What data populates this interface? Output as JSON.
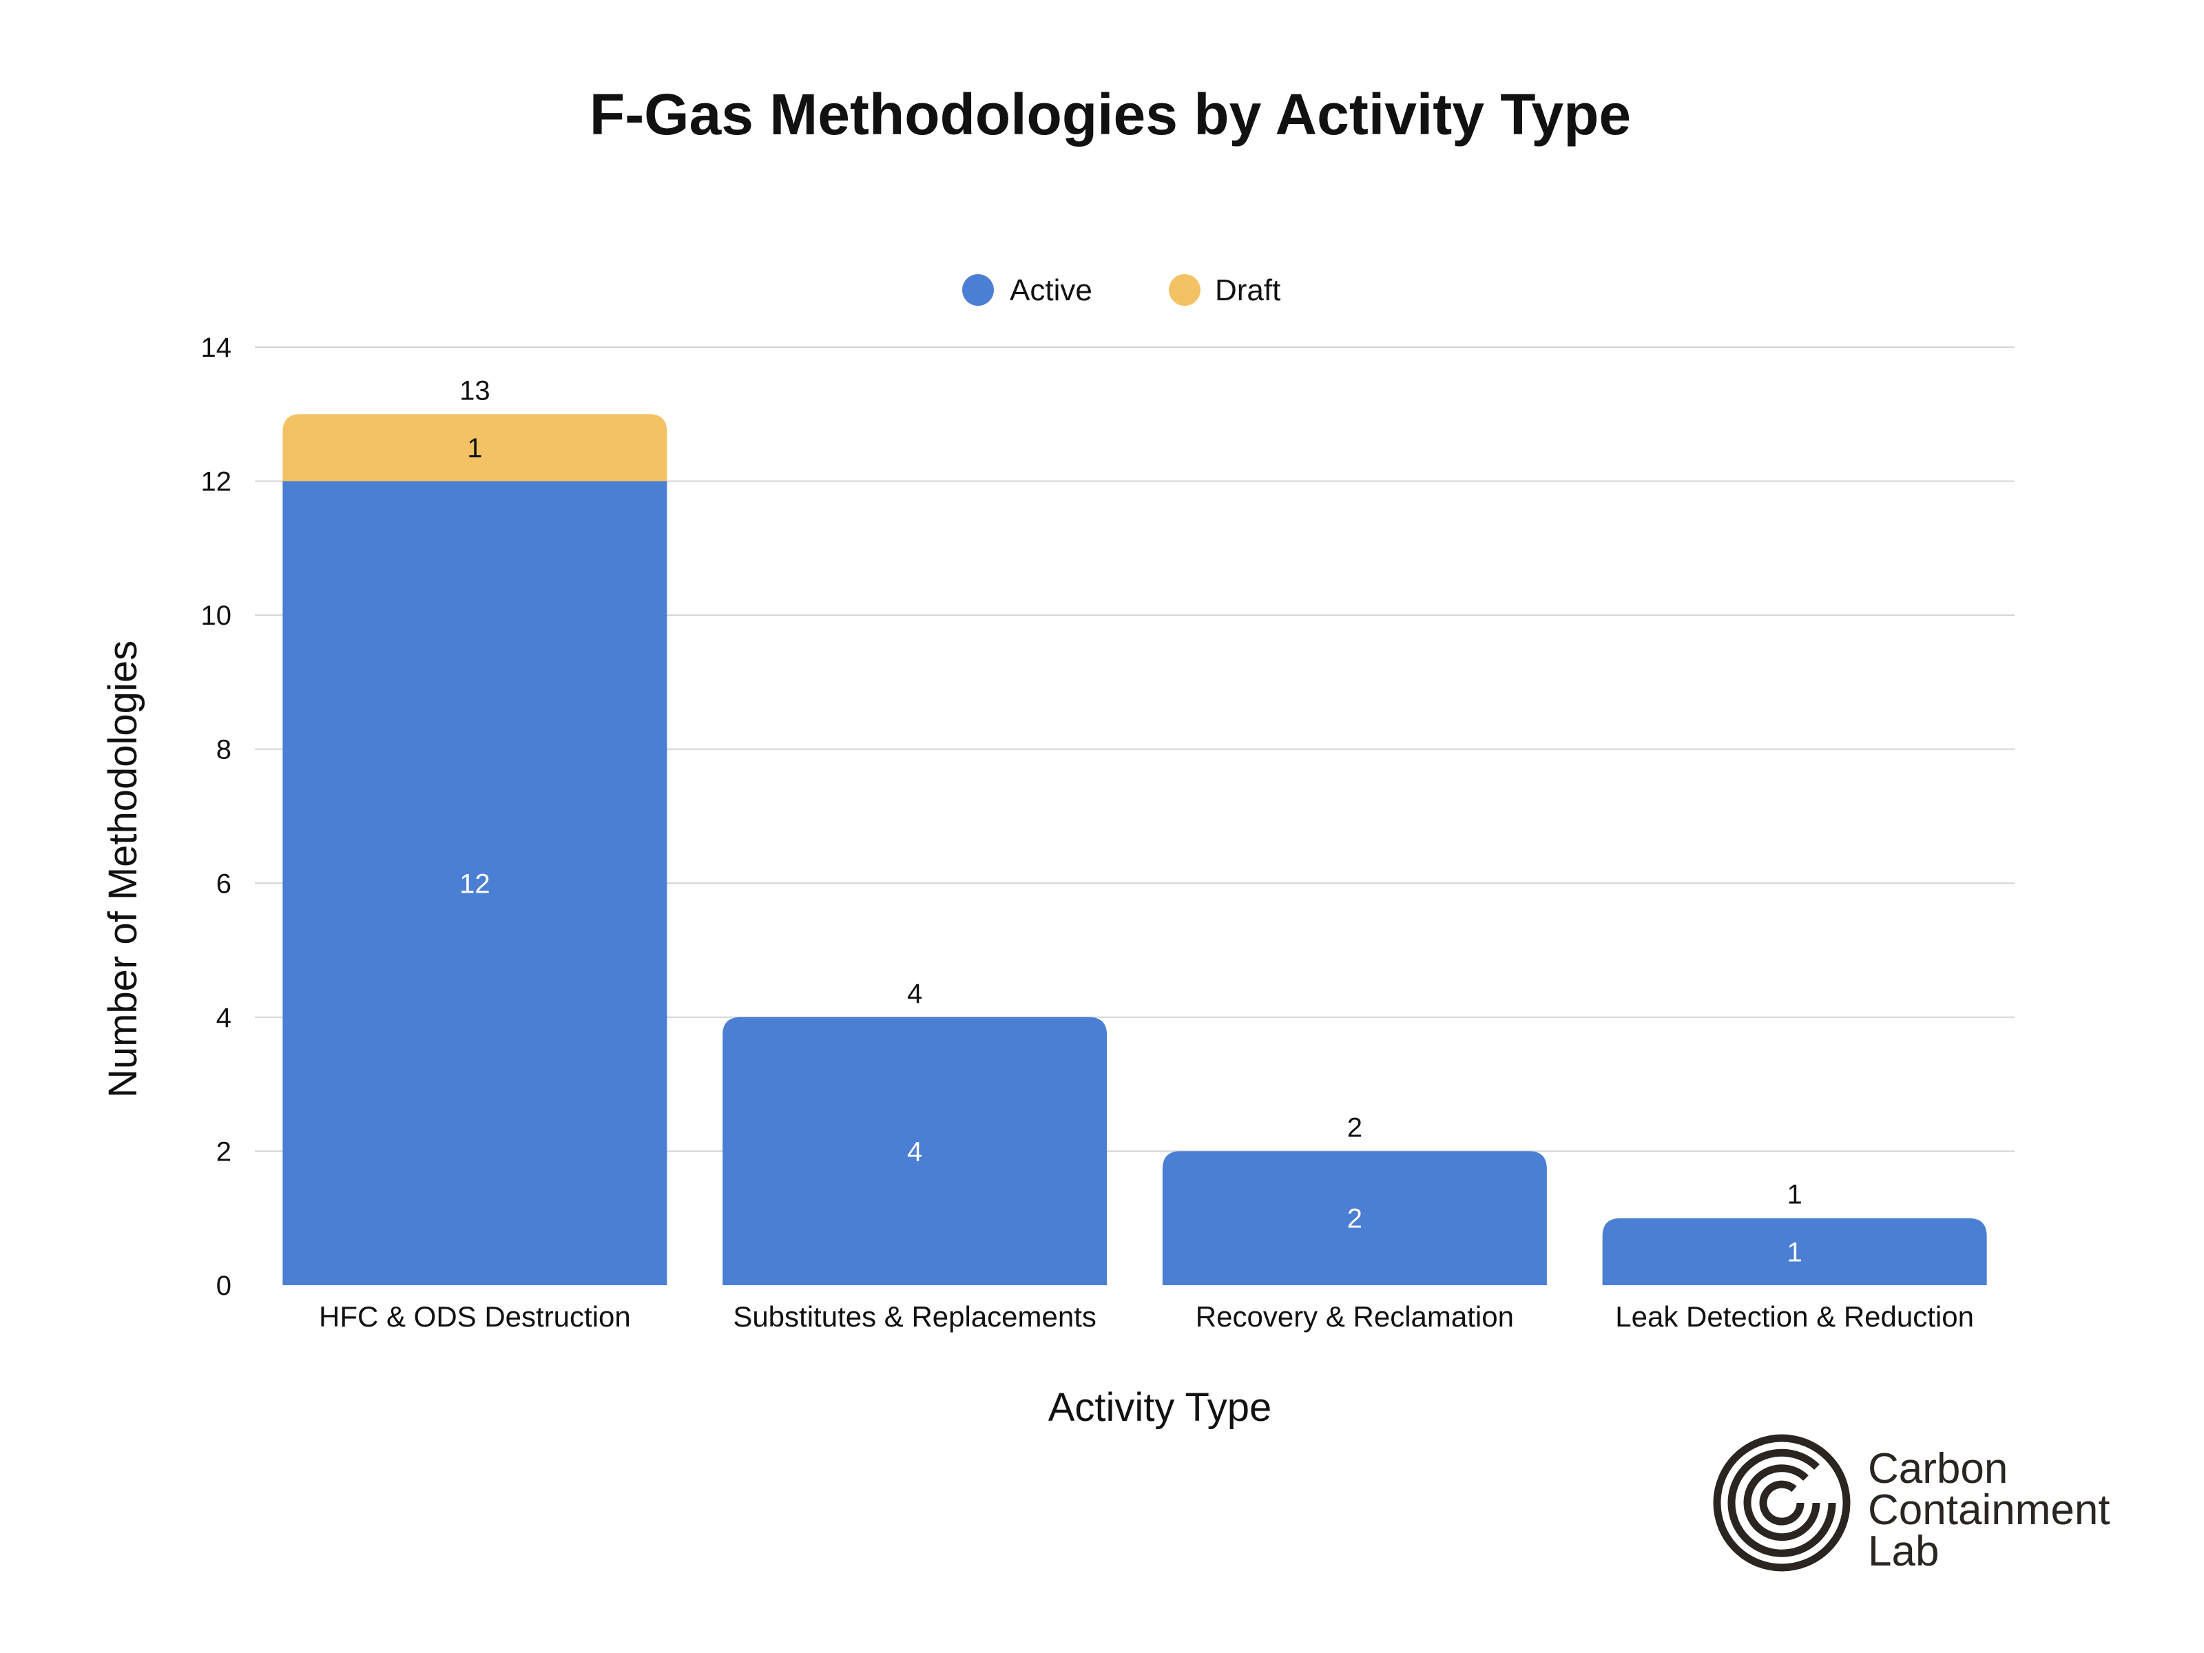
{
  "chart_data": {
    "type": "bar",
    "stacked": true,
    "title": "F-Gas Methodologies by Activity Type",
    "xlabel": "Activity Type",
    "ylabel": "Number of Methodologies",
    "categories": [
      "HFC & ODS Destruction",
      "Substitutes & Replacements",
      "Recovery & Reclamation",
      "Leak Detection & Reduction"
    ],
    "series": [
      {
        "name": "Active",
        "values": [
          12,
          4,
          2,
          1
        ],
        "color": "#4a7fd3"
      },
      {
        "name": "Draft",
        "values": [
          1,
          0,
          0,
          0
        ],
        "color": "#f2c265"
      }
    ],
    "totals": [
      13,
      4,
      2,
      1
    ],
    "ylim": [
      0,
      14
    ],
    "yticks": [
      0,
      2,
      4,
      6,
      8,
      10,
      12,
      14
    ],
    "grid": true,
    "legend": "top-center"
  },
  "branding": {
    "logo_text": [
      "Carbon",
      "Containment",
      "Lab"
    ],
    "logo_icon": "circled-c-logo-icon",
    "logo_color": "#2b2522"
  }
}
